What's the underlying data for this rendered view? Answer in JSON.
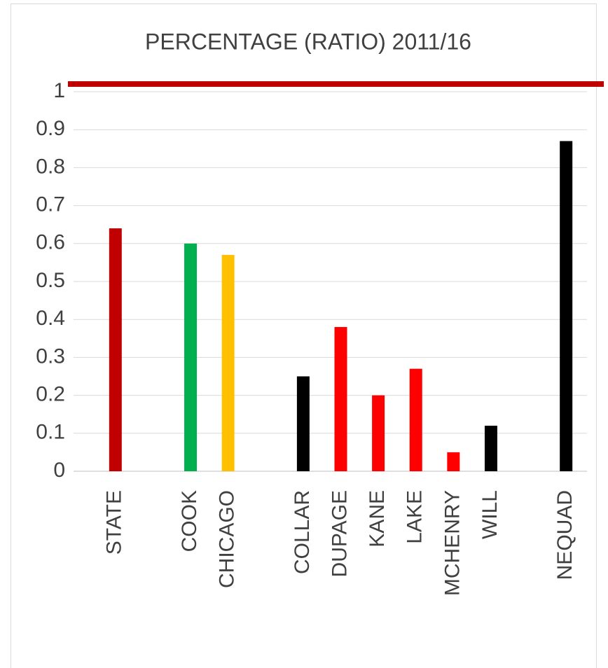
{
  "chart_data": {
    "type": "bar",
    "title": "PERCENTAGE (RATIO) 2011/16",
    "categories": [
      "STATE",
      null,
      "COOK",
      "CHICAGO",
      null,
      "COLLAR",
      "DUPAGE",
      "KANE",
      "LAKE",
      "MCHENRY",
      "WILL",
      null,
      "NEQUAD"
    ],
    "values": [
      0.64,
      null,
      0.6,
      0.57,
      null,
      0.25,
      0.38,
      0.2,
      0.27,
      0.05,
      0.12,
      null,
      0.87
    ],
    "colors": [
      "#c00000",
      null,
      "#00b050",
      "#ffc000",
      null,
      "#000000",
      "#ff0000",
      "#ff0000",
      "#ff0000",
      "#ff0000",
      "#000000",
      null,
      "#000000"
    ],
    "ylim": [
      0,
      1
    ],
    "yticks": [
      0,
      0.1,
      0.2,
      0.3,
      0.4,
      0.5,
      0.6,
      0.7,
      0.8,
      0.9,
      1
    ],
    "grid": true
  }
}
